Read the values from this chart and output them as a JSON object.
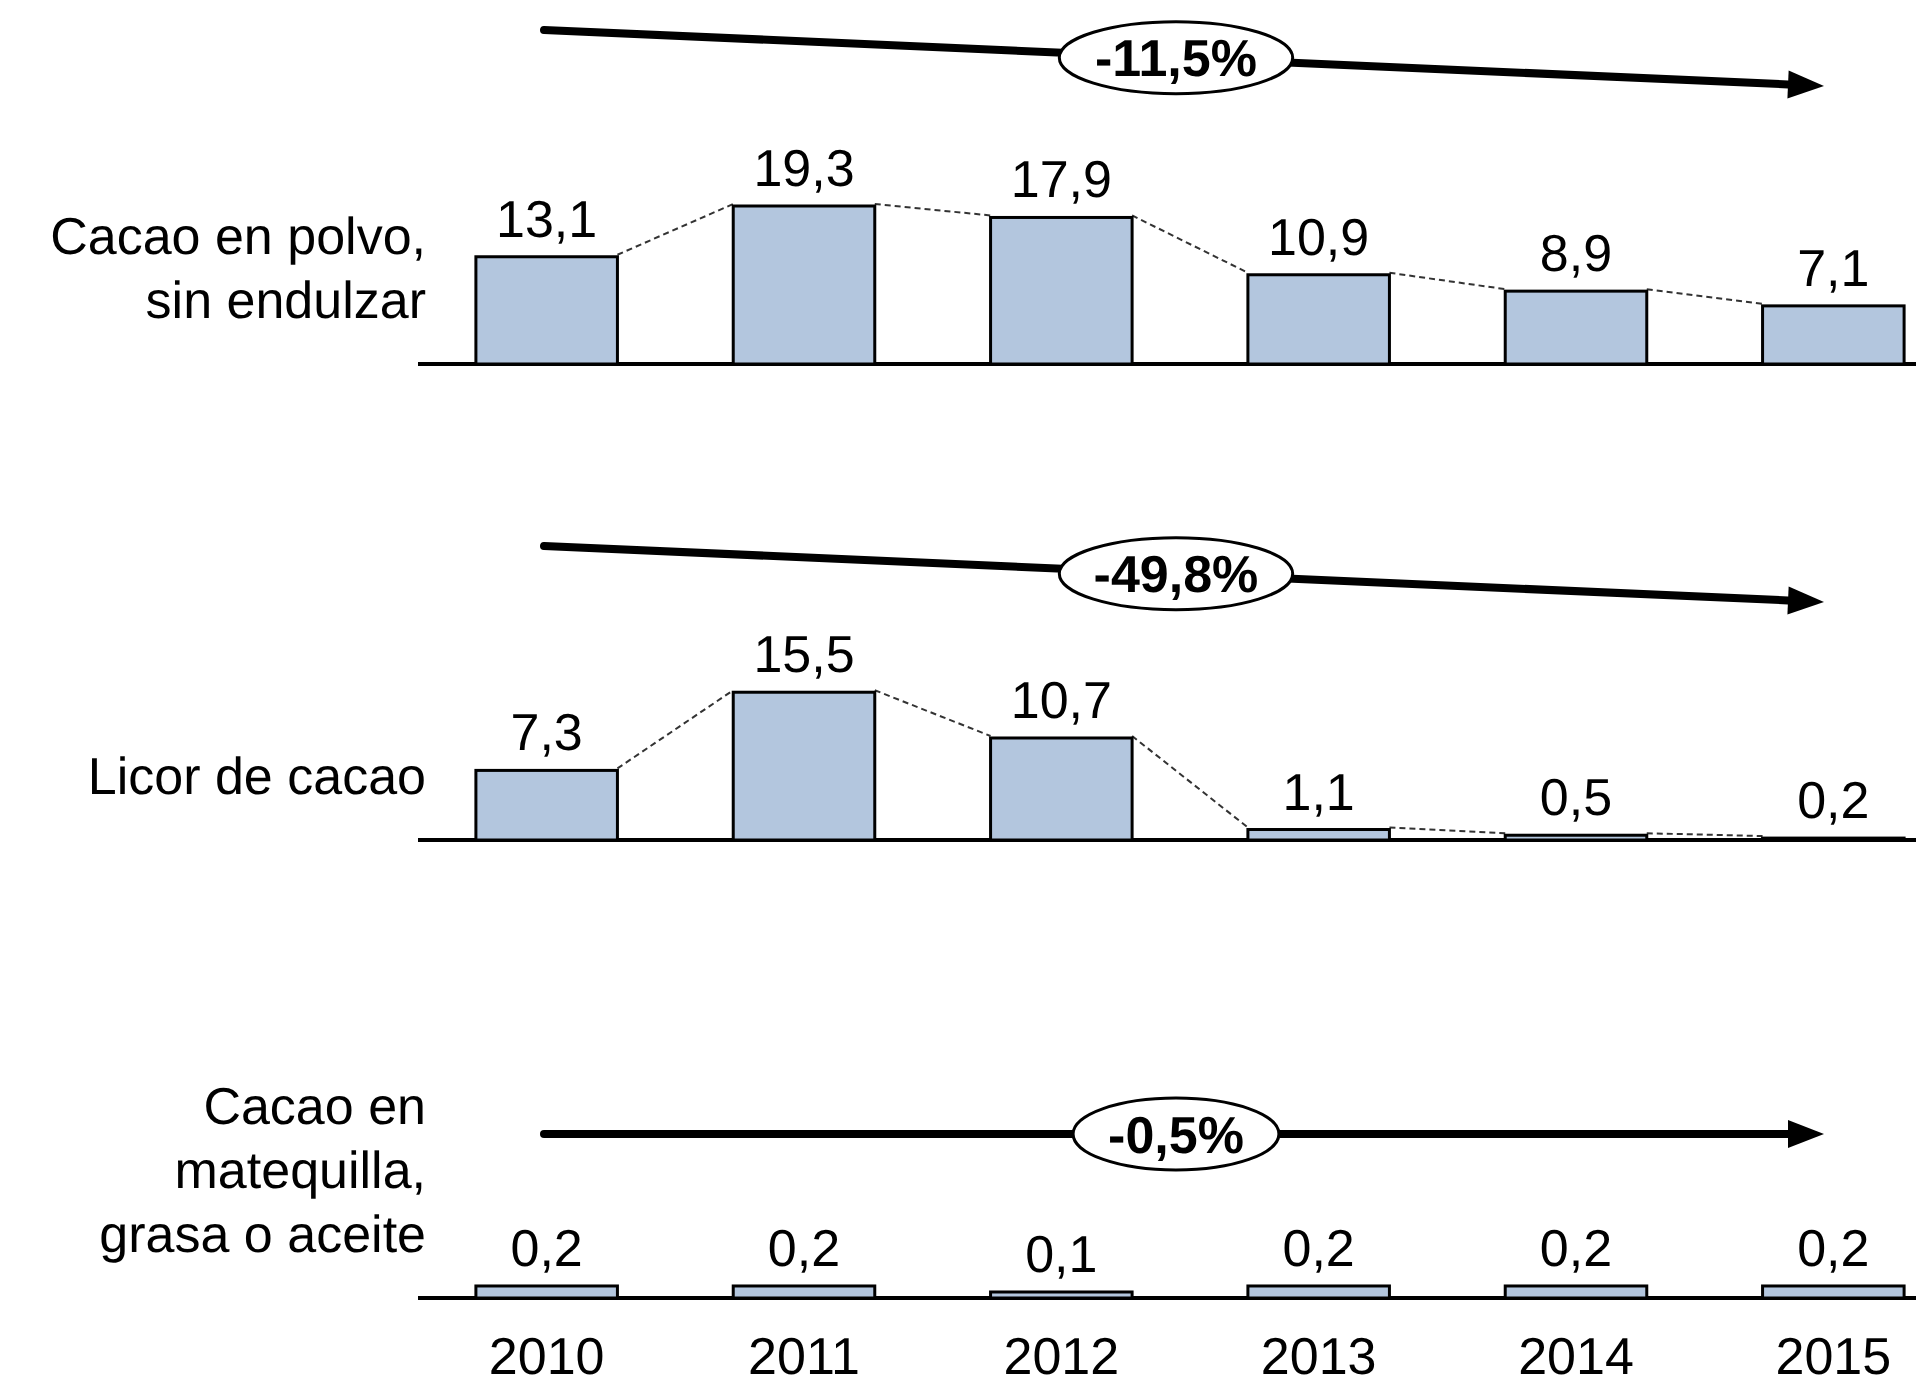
{
  "chart_data": [
    {
      "type": "bar",
      "ylabel": "Cacao en polvo, sin endulzar",
      "categories": [
        null,
        null,
        null,
        null,
        null,
        null
      ],
      "values": [
        13.1,
        19.3,
        17.9,
        10.9,
        8.9,
        7.1
      ],
      "value_labels": [
        "13,1",
        "19,3",
        "17,9",
        "10,9",
        "8,9",
        "7,1"
      ],
      "color": "#b3c6de",
      "annotations": [
        "-11,5%"
      ]
    },
    {
      "type": "bar",
      "ylabel": "Licor de cacao",
      "categories": [
        null,
        null,
        null,
        null,
        null,
        null
      ],
      "values": [
        7.3,
        15.5,
        10.7,
        1.1,
        0.5,
        0.2
      ],
      "value_labels": [
        "7,3",
        "15,5",
        "10,7",
        "1,1",
        "0,5",
        "0,2"
      ],
      "color": "#b3c6de",
      "annotations": [
        "-49,8%"
      ]
    },
    {
      "type": "bar",
      "ylabel": "Cacao en matequilla, grasa o aceite",
      "categories": [
        "2010",
        "2011",
        "2012",
        "2013",
        "2014",
        "2015"
      ],
      "values": [
        0.2,
        0.2,
        0.1,
        0.2,
        0.2,
        0.2
      ],
      "value_labels": [
        "0,2",
        "0,2",
        "0,1",
        "0,2",
        "0,2",
        "0,2"
      ],
      "color": "#b3c6de",
      "annotations": [
        "-0,5%"
      ],
      "tick_labels": "x"
    }
  ]
}
